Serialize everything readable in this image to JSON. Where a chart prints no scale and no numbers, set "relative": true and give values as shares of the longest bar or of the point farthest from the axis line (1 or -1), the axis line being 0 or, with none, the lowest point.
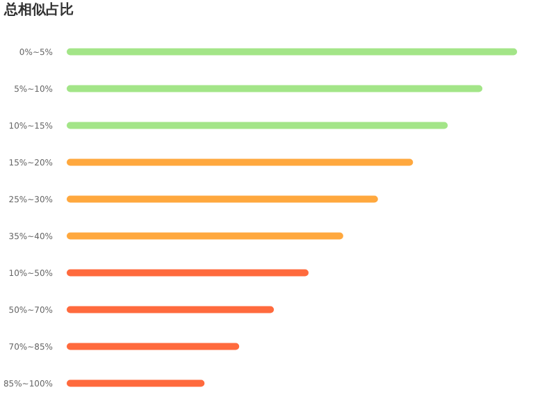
{
  "chart_data": {
    "type": "bar",
    "orientation": "horizontal",
    "relative": true,
    "title": "总相似占比",
    "categories": [
      "0%~5%",
      "5%~10%",
      "10%~15%",
      "15%~20%",
      "25%~30%",
      "35%~40%",
      "10%~50%",
      "50%~70%",
      "70%~85%",
      "85%~100%"
    ],
    "values": [
      1,
      0.923,
      0.846,
      0.769,
      0.691,
      0.614,
      0.537,
      0.46,
      0.383,
      0.306
    ],
    "colors": [
      "#a3e588",
      "#a3e588",
      "#a3e588",
      "#ffa83e",
      "#ffa83e",
      "#ffa83e",
      "#ff6a3d",
      "#ff6a3d",
      "#ff6a3d",
      "#ff6a3d"
    ],
    "data_labels": false
  }
}
